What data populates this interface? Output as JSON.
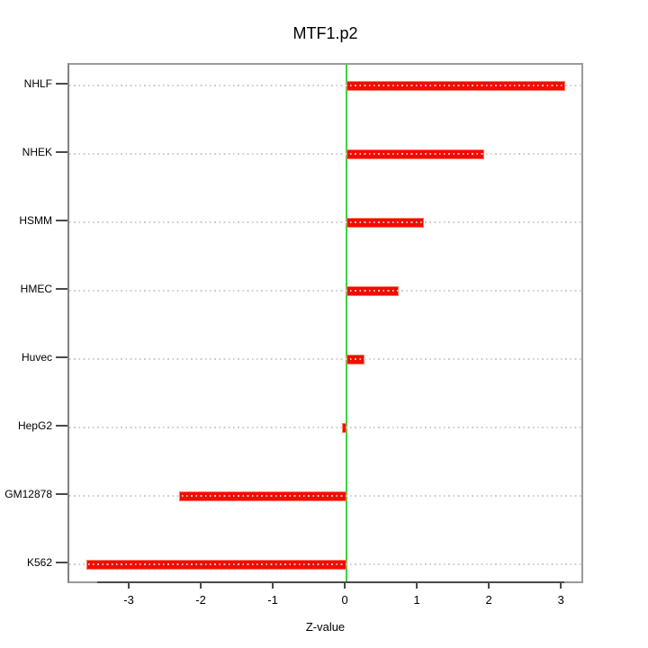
{
  "figure": {
    "title": "MTF1.p2",
    "xlabel": "Z-value"
  },
  "chart_data": {
    "type": "bar",
    "orientation": "horizontal",
    "title": "MTF1.p2",
    "xlabel": "Z-value",
    "ylabel": "",
    "categories": [
      "NHLF",
      "NHEK",
      "HSMM",
      "HMEC",
      "Huvec",
      "HepG2",
      "GM12878",
      "K562"
    ],
    "values": [
      3.03,
      1.91,
      1.07,
      0.72,
      0.25,
      -0.06,
      -2.33,
      -3.61
    ],
    "xticks": [
      -3,
      -2,
      -1,
      0,
      1,
      2,
      3
    ],
    "xlim": [
      -3.85,
      3.31
    ],
    "grid": "dotted-horizontal-per-category",
    "legend": "none",
    "colors": {
      "bar": "#f40b00",
      "zero_line": "#3bd63b",
      "grid_dots": "#cdcdcd",
      "frame": "#9a9a9a",
      "axis": "#4a4a4a",
      "text": "#000000"
    }
  }
}
